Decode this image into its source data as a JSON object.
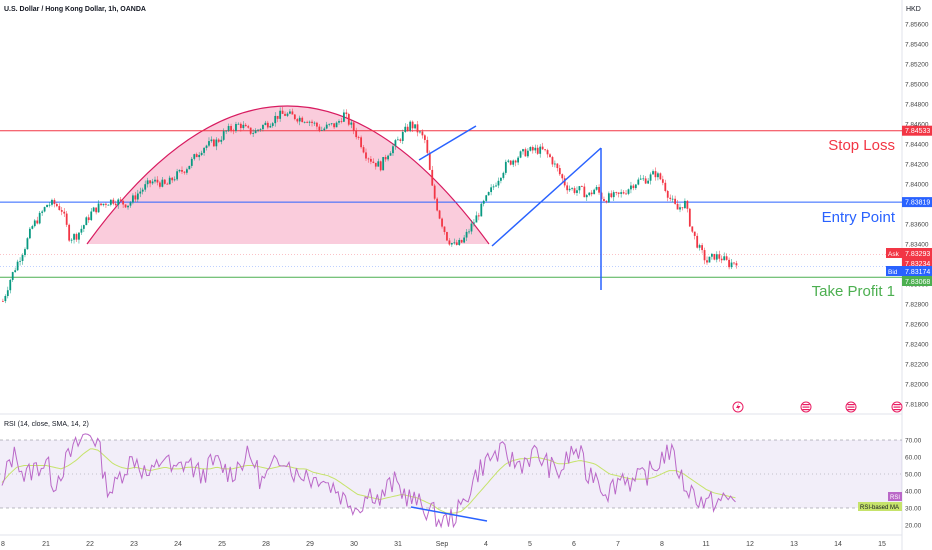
{
  "header": {
    "title": "U.S. Dollar / Hong Kong Dollar, 1h, OANDA",
    "currency": "HKD"
  },
  "annotations": {
    "stop_loss": "Stop Loss",
    "entry_point": "Entry Point",
    "take_profit": "Take Profit 1"
  },
  "price_tags": {
    "stop_loss": "7.84533",
    "entry": "7.83819",
    "ask_label": "Ask",
    "ask": "7.83293",
    "last": "7.83234",
    "bid_label": "Bid",
    "bid": "7.83174",
    "take_profit": "7.83068"
  },
  "rsi_panel": {
    "title": "RSI (14, close, SMA, 14, 2)",
    "rsi_tag": "RSI",
    "ma_tag": "RSI-based MA"
  },
  "colors": {
    "stop_loss": "#f23645",
    "entry": "#2962ff",
    "take_profit": "#4caf50",
    "candle_up": "#089981",
    "candle_down": "#f23645",
    "pattern_fill": "#f8bbd0",
    "rsi_line": "#ba68c8",
    "rsi_ma": "#c6e36b"
  },
  "chart_data": [
    {
      "type": "candlestick",
      "x_tick_labels": [
        "8",
        "21",
        "22",
        "23",
        "24",
        "25",
        "28",
        "29",
        "30",
        "31",
        "Sep",
        "4",
        "5",
        "6",
        "7",
        "8",
        "11",
        "12",
        "13",
        "14",
        "15"
      ],
      "y_ticks": [
        "7.85600",
        "7.85400",
        "7.85200",
        "7.85000",
        "7.84800",
        "7.84600",
        "7.84400",
        "7.84200",
        "7.84000",
        "7.83800",
        "7.83600",
        "7.83400",
        "7.83200",
        "7.83000",
        "7.82800",
        "7.82600",
        "7.82400",
        "7.82200",
        "7.82000",
        "7.81800"
      ],
      "ylim": [
        7.8173,
        7.857
      ],
      "levels": {
        "stop_loss": 7.84533,
        "entry": 7.83819,
        "take_profit": 7.83068,
        "ask": 7.83293,
        "last": 7.83234,
        "bid": 7.83174
      },
      "close_path": [
        [
          0,
          7.8283
        ],
        [
          1,
          7.8305
        ],
        [
          2,
          7.8322
        ],
        [
          3,
          7.8338
        ],
        [
          4,
          7.8358
        ],
        [
          5,
          7.8368
        ],
        [
          6,
          7.838
        ],
        [
          7,
          7.838
        ],
        [
          8,
          7.8374
        ],
        [
          9,
          7.8346
        ],
        [
          10,
          7.8349
        ],
        [
          11,
          7.836
        ],
        [
          12,
          7.8372
        ],
        [
          13,
          7.8378
        ],
        [
          14,
          7.8382
        ],
        [
          15,
          7.8384
        ],
        [
          16,
          7.8381
        ],
        [
          17,
          7.838
        ],
        [
          18,
          7.8389
        ],
        [
          19,
          7.8396
        ],
        [
          20,
          7.8402
        ],
        [
          21,
          7.8402
        ],
        [
          22,
          7.8398
        ],
        [
          23,
          7.8406
        ],
        [
          24,
          7.8412
        ],
        [
          25,
          7.8418
        ],
        [
          26,
          7.8428
        ],
        [
          27,
          7.8437
        ],
        [
          28,
          7.844
        ],
        [
          29,
          7.8443
        ],
        [
          30,
          7.8452
        ],
        [
          31,
          7.8456
        ],
        [
          32,
          7.846
        ],
        [
          33,
          7.8453
        ],
        [
          34,
          7.8452
        ],
        [
          35,
          7.8458
        ],
        [
          36,
          7.8462
        ],
        [
          37,
          7.8468
        ],
        [
          38,
          7.847
        ],
        [
          39,
          7.8468
        ],
        [
          40,
          7.8466
        ],
        [
          41,
          7.8465
        ],
        [
          42,
          7.846
        ],
        [
          43,
          7.8454
        ],
        [
          44,
          7.8458
        ],
        [
          45,
          7.8459
        ],
        [
          46,
          7.847
        ],
        [
          47,
          7.8458
        ],
        [
          48,
          7.8446
        ],
        [
          49,
          7.843
        ],
        [
          50,
          7.8422
        ],
        [
          51,
          7.8418
        ],
        [
          52,
          7.8432
        ],
        [
          53,
          7.844
        ],
        [
          54,
          7.845
        ],
        [
          55,
          7.846
        ],
        [
          56,
          7.8453
        ],
        [
          57,
          7.8443
        ],
        [
          58,
          7.8393
        ],
        [
          59,
          7.8366
        ],
        [
          60,
          7.8345
        ],
        [
          61,
          7.8338
        ],
        [
          62,
          7.8342
        ],
        [
          63,
          7.8355
        ],
        [
          64,
          7.8368
        ],
        [
          65,
          7.8382
        ],
        [
          66,
          7.8395
        ],
        [
          67,
          7.8408
        ],
        [
          68,
          7.842
        ],
        [
          69,
          7.8425
        ],
        [
          70,
          7.843
        ],
        [
          71,
          7.8433
        ],
        [
          72,
          7.8434
        ],
        [
          73,
          7.8433
        ],
        [
          74,
          7.8425
        ],
        [
          75,
          7.8412
        ],
        [
          76,
          7.8398
        ],
        [
          77,
          7.8394
        ],
        [
          78,
          7.8394
        ],
        [
          79,
          7.8388
        ],
        [
          80,
          7.8396
        ],
        [
          81,
          7.8385
        ],
        [
          82,
          7.8387
        ],
        [
          83,
          7.8388
        ],
        [
          84,
          7.8393
        ],
        [
          85,
          7.84
        ],
        [
          86,
          7.8404
        ],
        [
          87,
          7.8405
        ],
        [
          88,
          7.8411
        ],
        [
          89,
          7.8403
        ],
        [
          90,
          7.8386
        ],
        [
          91,
          7.8374
        ],
        [
          92,
          7.8382
        ],
        [
          93,
          7.8353
        ],
        [
          94,
          7.8335
        ],
        [
          95,
          7.8322
        ],
        [
          96,
          7.8328
        ],
        [
          97,
          7.8326
        ],
        [
          98,
          7.832
        ],
        [
          99,
          7.8323
        ]
      ]
    },
    {
      "type": "line",
      "title": "RSI (14, close, SMA, 14, 2)",
      "y_ticks": [
        "70.00",
        "60.00",
        "50.00",
        "40.00",
        "30.00",
        "20.00"
      ],
      "ylim": [
        17,
        80
      ],
      "band": [
        30,
        70
      ],
      "series": [
        {
          "name": "RSI",
          "values": [
            40,
            58,
            62,
            48,
            52,
            55,
            57,
            44,
            52,
            60,
            66,
            72,
            74,
            68,
            44,
            40,
            50,
            56,
            60,
            52,
            48,
            55,
            62,
            50,
            54,
            58,
            52,
            49,
            55,
            57,
            53,
            50,
            56,
            60,
            58,
            45,
            50,
            56,
            62,
            54,
            48,
            52,
            46,
            50,
            44,
            42,
            36,
            34,
            30,
            36,
            40,
            34,
            42,
            45,
            40,
            36,
            33,
            30,
            28,
            22,
            22,
            25,
            30,
            40,
            50,
            56,
            60,
            62,
            62,
            57,
            56,
            60,
            62,
            58,
            54,
            50,
            56,
            64,
            62,
            48,
            52,
            42,
            40,
            46,
            50,
            44,
            47,
            50,
            52,
            60,
            64,
            56,
            44,
            40,
            36,
            32,
            34,
            34,
            35,
            35
          ]
        },
        {
          "name": "RSI-based MA",
          "values": [
            45,
            50,
            54,
            55,
            55,
            55,
            55,
            54,
            53,
            55,
            58,
            62,
            65,
            64,
            60,
            56,
            54,
            53,
            54,
            53,
            52,
            53,
            54,
            53,
            53,
            54,
            54,
            53,
            53,
            54,
            53,
            53,
            54,
            55,
            55,
            54,
            53,
            54,
            55,
            54,
            53,
            53,
            51,
            50,
            49,
            47,
            44,
            41,
            38,
            37,
            36,
            35,
            36,
            37,
            38,
            37,
            36,
            34,
            32,
            29,
            27,
            27,
            28,
            32,
            37,
            42,
            47,
            52,
            56,
            58,
            59,
            59,
            60,
            59,
            58,
            56,
            56,
            57,
            58,
            57,
            56,
            53,
            50,
            49,
            48,
            47,
            47,
            47,
            48,
            50,
            52,
            52,
            50,
            47,
            44,
            41,
            39,
            38,
            37,
            36
          ]
        }
      ],
      "x_tick_labels": [
        "8",
        "21",
        "22",
        "23",
        "24",
        "25",
        "28",
        "29",
        "30",
        "31",
        "Sep",
        "4",
        "5",
        "6",
        "7",
        "8",
        "11",
        "12",
        "13",
        "14",
        "15"
      ]
    }
  ]
}
